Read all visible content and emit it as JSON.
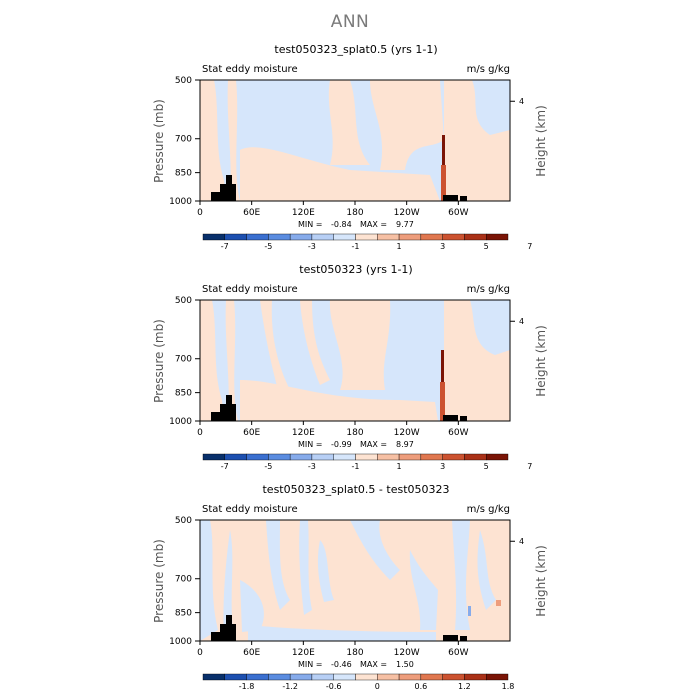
{
  "page": {
    "title": "ANN"
  },
  "chart_data": [
    {
      "type": "heatmap",
      "title": "test050323_splat0.5 (yrs 1-1)",
      "left_label": "Stat eddy moisture",
      "right_label": "m/s g/kg",
      "xlabel": "",
      "ylabel": "Pressure (mb)",
      "ylabel_right": "Height (km)",
      "xticks": [
        "0",
        "60E",
        "120E",
        "180",
        "120W",
        "60W"
      ],
      "yticks": [
        "500",
        "700",
        "850",
        "1000"
      ],
      "yticks_right": [
        "4"
      ],
      "stats": {
        "min_label": "MIN =",
        "min": "-0.84",
        "max_label": "MAX =",
        "max": "9.77"
      },
      "colorbar": {
        "tick_labels": [
          "-7",
          "-5",
          "-3",
          "-1",
          "1",
          "3",
          "5",
          "7"
        ],
        "colors": [
          "#08306b",
          "#1c4fb0",
          "#3a6fd0",
          "#5a8ce0",
          "#86abeb",
          "#b7cff5",
          "#d6e6fb",
          "#fde3d2",
          "#f6c0a4",
          "#ee9d7c",
          "#e0774f",
          "#cc5230",
          "#aa3117",
          "#7a1406"
        ]
      }
    },
    {
      "type": "heatmap",
      "title": "test050323 (yrs 1-1)",
      "left_label": "Stat eddy moisture",
      "right_label": "m/s g/kg",
      "xlabel": "",
      "ylabel": "Pressure (mb)",
      "ylabel_right": "Height (km)",
      "xticks": [
        "0",
        "60E",
        "120E",
        "180",
        "120W",
        "60W"
      ],
      "yticks": [
        "500",
        "700",
        "850",
        "1000"
      ],
      "yticks_right": [
        "4"
      ],
      "stats": {
        "min_label": "MIN =",
        "min": "-0.99",
        "max_label": "MAX =",
        "max": "8.97"
      },
      "colorbar": {
        "tick_labels": [
          "-7",
          "-5",
          "-3",
          "-1",
          "1",
          "3",
          "5",
          "7"
        ],
        "colors": [
          "#08306b",
          "#1c4fb0",
          "#3a6fd0",
          "#5a8ce0",
          "#86abeb",
          "#b7cff5",
          "#d6e6fb",
          "#fde3d2",
          "#f6c0a4",
          "#ee9d7c",
          "#e0774f",
          "#cc5230",
          "#aa3117",
          "#7a1406"
        ]
      }
    },
    {
      "type": "heatmap",
      "title": "test050323_splat0.5 - test050323",
      "left_label": "Stat eddy moisture",
      "right_label": "m/s g/kg",
      "xlabel": "",
      "ylabel": "Pressure (mb)",
      "ylabel_right": "Height (km)",
      "xticks": [
        "0",
        "60E",
        "120E",
        "180",
        "120W",
        "60W"
      ],
      "yticks": [
        "500",
        "700",
        "850",
        "1000"
      ],
      "yticks_right": [
        "4"
      ],
      "stats": {
        "min_label": "MIN =",
        "min": "-0.46",
        "max_label": "MAX =",
        "max": "1.50"
      },
      "colorbar": {
        "tick_labels": [
          "-1.8",
          "-1.2",
          "-0.6",
          "0",
          "0.6",
          "1.2",
          "1.8"
        ],
        "colors": [
          "#08306b",
          "#1c4fb0",
          "#3a6fd0",
          "#5a8ce0",
          "#86abeb",
          "#b7cff5",
          "#d6e6fb",
          "#fde3d2",
          "#f6c0a4",
          "#ee9d7c",
          "#e0774f",
          "#cc5230",
          "#aa3117",
          "#7a1406"
        ]
      }
    }
  ]
}
